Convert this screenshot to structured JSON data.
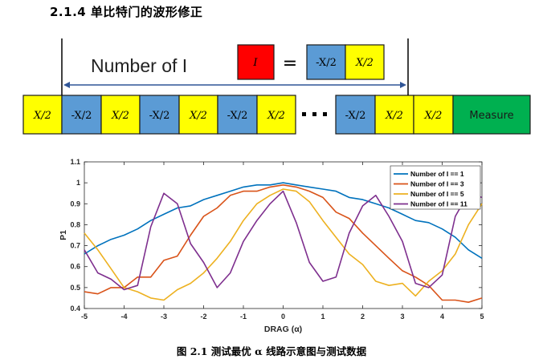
{
  "section_heading": "2.1.4   单比特门的波形修正",
  "diagram": {
    "range_label": "Number of I",
    "equation": {
      "lhs": "I",
      "equals": "=",
      "rhs": [
        "-X/2",
        "X/2"
      ]
    },
    "sequence": [
      "X/2",
      "-X/2",
      "X/2",
      "-X/2",
      "X/2",
      "-X/2",
      "X/2",
      "…",
      "-X/2",
      "X/2",
      "X/2",
      "Measure"
    ],
    "colors": {
      "yellow": "#ffff00",
      "blue": "#5b9bd5",
      "red": "#ff0000",
      "green": "#00b050"
    }
  },
  "chart_data": {
    "type": "line",
    "xlabel": "DRAG (α)",
    "ylabel": "P1",
    "xlim": [
      -5,
      5
    ],
    "ylim": [
      0.4,
      1.1
    ],
    "xticks": [
      -5,
      -4,
      -3,
      -2,
      -1,
      0,
      1,
      2,
      3,
      4,
      5
    ],
    "yticks": [
      0.4,
      0.5,
      0.6,
      0.7,
      0.8,
      0.9,
      1,
      1.1
    ],
    "legend_position": "top-right",
    "grid": false,
    "x": [
      -5,
      -4.66,
      -4.33,
      -4,
      -3.66,
      -3.33,
      -3,
      -2.66,
      -2.33,
      -2,
      -1.66,
      -1.33,
      -1,
      -0.66,
      -0.33,
      0,
      0.33,
      0.66,
      1,
      1.33,
      1.66,
      2,
      2.33,
      2.66,
      3,
      3.33,
      3.66,
      4,
      4.33,
      4.66,
      5
    ],
    "series": [
      {
        "name": "Number of I == 1",
        "color": "#0072bd",
        "values": [
          0.66,
          0.7,
          0.73,
          0.75,
          0.78,
          0.82,
          0.85,
          0.88,
          0.89,
          0.92,
          0.94,
          0.96,
          0.98,
          0.99,
          0.99,
          1.0,
          0.99,
          0.98,
          0.97,
          0.96,
          0.93,
          0.92,
          0.9,
          0.88,
          0.85,
          0.82,
          0.81,
          0.78,
          0.74,
          0.68,
          0.64
        ]
      },
      {
        "name": "Number of I == 3",
        "color": "#d95319",
        "values": [
          0.48,
          0.47,
          0.5,
          0.5,
          0.55,
          0.55,
          0.63,
          0.65,
          0.75,
          0.84,
          0.88,
          0.94,
          0.96,
          0.96,
          0.98,
          0.99,
          0.98,
          0.96,
          0.93,
          0.86,
          0.83,
          0.76,
          0.7,
          0.64,
          0.58,
          0.55,
          0.51,
          0.44,
          0.44,
          0.43,
          0.45
        ]
      },
      {
        "name": "Number of I == 5",
        "color": "#edb120",
        "values": [
          0.76,
          0.68,
          0.59,
          0.5,
          0.48,
          0.45,
          0.44,
          0.49,
          0.52,
          0.57,
          0.64,
          0.72,
          0.82,
          0.9,
          0.94,
          0.97,
          0.96,
          0.91,
          0.82,
          0.74,
          0.66,
          0.61,
          0.53,
          0.51,
          0.52,
          0.46,
          0.53,
          0.58,
          0.66,
          0.8,
          0.9
        ]
      },
      {
        "name": "Number of I == 11",
        "color": "#7e2f8e",
        "values": [
          0.68,
          0.57,
          0.54,
          0.49,
          0.51,
          0.79,
          0.95,
          0.9,
          0.71,
          0.62,
          0.5,
          0.57,
          0.72,
          0.82,
          0.9,
          0.96,
          0.81,
          0.62,
          0.53,
          0.55,
          0.76,
          0.89,
          0.94,
          0.84,
          0.72,
          0.52,
          0.5,
          0.56,
          0.84,
          0.95,
          0.93
        ]
      }
    ]
  },
  "caption": "图 2.1   测试最优 α 线路示意图与测试数据"
}
